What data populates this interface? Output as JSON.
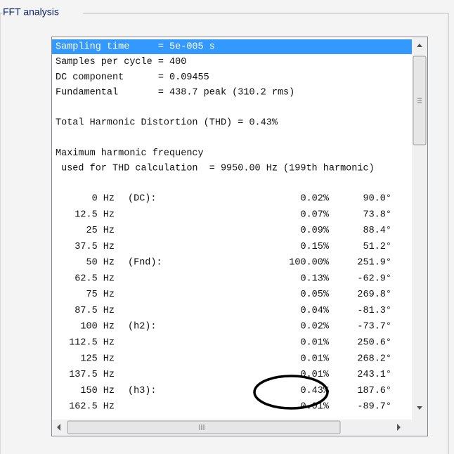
{
  "group_title": "FFT analysis",
  "summary": [
    "Sampling time     = 5e-005 s",
    "Samples per cycle = 400",
    "DC component      = 0.09455",
    "Fundamental       = 438.7 peak (310.2 rms)"
  ],
  "thd": "Total Harmonic Distortion (THD) = 0.43%",
  "max_freq": [
    "Maximum harmonic frequency",
    " used for THD calculation  = 9950.00 Hz (199th harmonic)"
  ],
  "harmonics": [
    {
      "freq": "0 Hz",
      "label": "(DC):",
      "percent": "0.02%",
      "phase": "90.0°"
    },
    {
      "freq": "12.5 Hz",
      "percent": "0.07%",
      "phase": "73.8°"
    },
    {
      "freq": "25 Hz",
      "percent": "0.09%",
      "phase": "88.4°"
    },
    {
      "freq": "37.5 Hz",
      "percent": "0.15%",
      "phase": "51.2°"
    },
    {
      "freq": "50 Hz",
      "label": "(Fnd):",
      "percent": "100.00%",
      "phase": "251.9°"
    },
    {
      "freq": "62.5 Hz",
      "percent": "0.13%",
      "phase": "-62.9°"
    },
    {
      "freq": "75 Hz",
      "percent": "0.05%",
      "phase": "269.8°"
    },
    {
      "freq": "87.5 Hz",
      "percent": "0.04%",
      "phase": "-81.3°"
    },
    {
      "freq": "100 Hz",
      "label": "(h2):",
      "percent": "0.02%",
      "phase": "-73.7°"
    },
    {
      "freq": "112.5 Hz",
      "percent": "0.01%",
      "phase": "250.6°"
    },
    {
      "freq": "125 Hz",
      "percent": "0.01%",
      "phase": "268.2°"
    },
    {
      "freq": "137.5 Hz",
      "percent": "0.01%",
      "phase": "243.1°"
    },
    {
      "freq": "150 Hz",
      "label": "(h3):",
      "percent": "0.43%",
      "phase": "187.6°"
    },
    {
      "freq": "162.5 Hz",
      "percent": "0.01%",
      "phase": "-89.7°"
    }
  ]
}
